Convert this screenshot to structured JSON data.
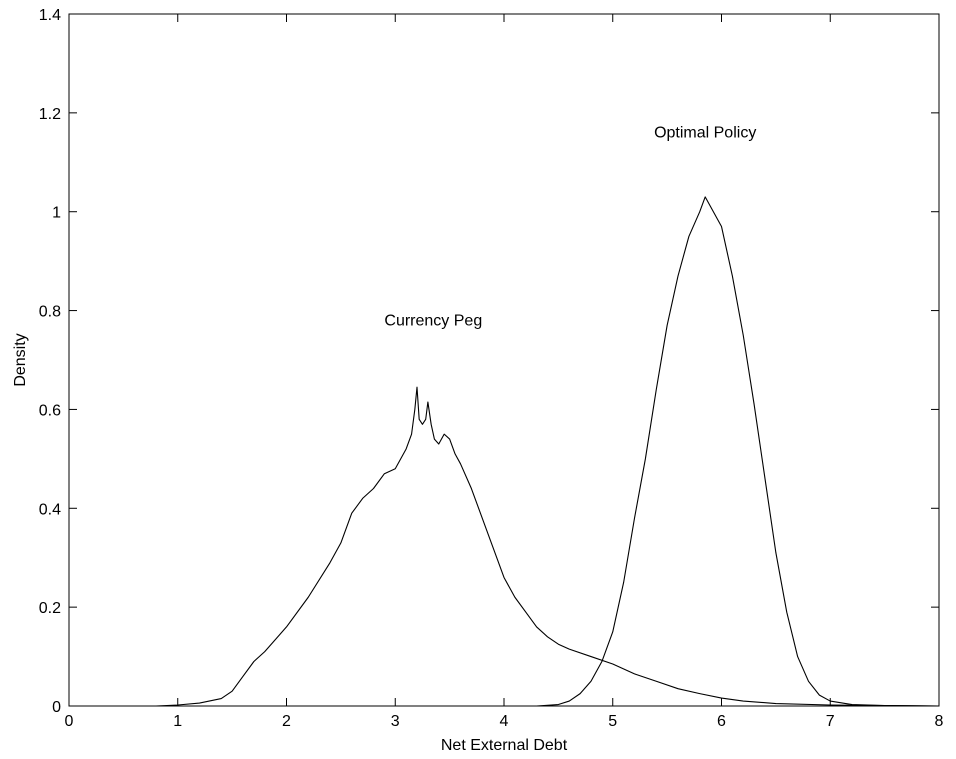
{
  "chart_data": {
    "type": "line",
    "title": "",
    "xlabel": "Net External Debt",
    "ylabel": "Density",
    "xlim": [
      0,
      8
    ],
    "ylim": [
      0,
      1.4
    ],
    "xticks": [
      "0",
      "1",
      "2",
      "3",
      "4",
      "5",
      "6",
      "7",
      "8"
    ],
    "yticks": [
      "0",
      "0.2",
      "0.4",
      "0.6",
      "0.8",
      "1",
      "1.2",
      "1.4"
    ],
    "grid": false,
    "annotations": [
      {
        "text": "Currency Peg",
        "x": 3.35,
        "y": 0.77
      },
      {
        "text": "Optimal Policy",
        "x": 5.85,
        "y": 1.15
      }
    ],
    "series": [
      {
        "x": [
          0.8,
          1.0,
          1.2,
          1.4,
          1.5,
          1.6,
          1.7,
          1.8,
          2.0,
          2.2,
          2.4,
          2.5,
          2.6,
          2.65,
          2.7,
          2.8,
          2.9,
          3.0,
          3.05,
          3.1,
          3.15,
          3.18,
          3.2,
          3.22,
          3.25,
          3.28,
          3.3,
          3.33,
          3.36,
          3.4,
          3.45,
          3.5,
          3.55,
          3.6,
          3.7,
          3.8,
          3.9,
          4.0,
          4.1,
          4.2,
          4.3,
          4.4,
          4.5,
          4.6,
          4.8,
          5.0,
          5.2,
          5.4,
          5.6,
          5.8,
          6.0,
          6.2,
          6.5,
          7.0,
          7.5,
          8.0
        ],
        "y": [
          0.0,
          0.002,
          0.006,
          0.015,
          0.03,
          0.06,
          0.09,
          0.11,
          0.16,
          0.22,
          0.29,
          0.33,
          0.39,
          0.405,
          0.42,
          0.44,
          0.47,
          0.48,
          0.5,
          0.52,
          0.55,
          0.6,
          0.645,
          0.58,
          0.57,
          0.58,
          0.615,
          0.57,
          0.54,
          0.53,
          0.55,
          0.54,
          0.51,
          0.49,
          0.44,
          0.38,
          0.32,
          0.26,
          0.22,
          0.19,
          0.16,
          0.14,
          0.125,
          0.115,
          0.1,
          0.085,
          0.065,
          0.05,
          0.035,
          0.025,
          0.016,
          0.01,
          0.005,
          0.002,
          0.001,
          0.0
        ]
      },
      {
        "x": [
          4.3,
          4.5,
          4.6,
          4.7,
          4.8,
          4.9,
          5.0,
          5.1,
          5.2,
          5.3,
          5.4,
          5.5,
          5.6,
          5.7,
          5.8,
          5.85,
          5.9,
          5.95,
          6.0,
          6.1,
          6.2,
          6.3,
          6.4,
          6.5,
          6.6,
          6.7,
          6.8,
          6.9,
          7.0,
          7.2,
          7.5,
          8.0
        ],
        "y": [
          0.0,
          0.003,
          0.01,
          0.025,
          0.05,
          0.09,
          0.15,
          0.25,
          0.38,
          0.5,
          0.64,
          0.77,
          0.87,
          0.95,
          1.0,
          1.03,
          1.01,
          0.99,
          0.97,
          0.87,
          0.75,
          0.61,
          0.46,
          0.31,
          0.19,
          0.1,
          0.05,
          0.022,
          0.01,
          0.003,
          0.001,
          0.0
        ]
      }
    ]
  }
}
